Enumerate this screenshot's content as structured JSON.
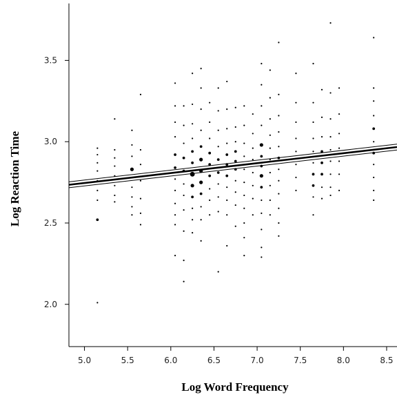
{
  "chart_data": {
    "type": "scatter",
    "title": "",
    "xlabel": "Log Word Frequency",
    "ylabel": "Log Reaction Time",
    "xlim": [
      4.82,
      8.62
    ],
    "ylim": [
      1.74,
      3.85
    ],
    "xticks": [
      5.0,
      5.5,
      6.0,
      6.5,
      7.0,
      7.5,
      8.0,
      8.5
    ],
    "xtick_labels": [
      "5.0",
      "5.5",
      "6.0",
      "6.5",
      "7.0",
      "7.5",
      "8.0",
      "8.5"
    ],
    "yticks": [
      2.0,
      2.5,
      3.0,
      3.5
    ],
    "ytick_labels": [
      "2.0",
      "2.5",
      "3.0",
      "3.5"
    ],
    "grid": false,
    "legend": "none",
    "point_color": "#000000",
    "points": [
      {
        "x": 5.15,
        "y": 2.96,
        "n": 1
      },
      {
        "x": 5.15,
        "y": 2.92,
        "n": 1
      },
      {
        "x": 5.15,
        "y": 2.87,
        "n": 1
      },
      {
        "x": 5.15,
        "y": 2.82,
        "n": 1
      },
      {
        "x": 5.15,
        "y": 2.76,
        "n": 1
      },
      {
        "x": 5.15,
        "y": 2.7,
        "n": 1
      },
      {
        "x": 5.15,
        "y": 2.64,
        "n": 1
      },
      {
        "x": 5.15,
        "y": 2.52,
        "n": 2
      },
      {
        "x": 5.15,
        "y": 2.01,
        "n": 1
      },
      {
        "x": 5.35,
        "y": 3.14,
        "n": 1
      },
      {
        "x": 5.35,
        "y": 2.95,
        "n": 1
      },
      {
        "x": 5.35,
        "y": 2.9,
        "n": 1
      },
      {
        "x": 5.35,
        "y": 2.85,
        "n": 1
      },
      {
        "x": 5.35,
        "y": 2.79,
        "n": 1
      },
      {
        "x": 5.35,
        "y": 2.73,
        "n": 1
      },
      {
        "x": 5.35,
        "y": 2.67,
        "n": 1
      },
      {
        "x": 5.35,
        "y": 2.63,
        "n": 1
      },
      {
        "x": 5.55,
        "y": 3.07,
        "n": 1
      },
      {
        "x": 5.55,
        "y": 2.98,
        "n": 1
      },
      {
        "x": 5.55,
        "y": 2.91,
        "n": 1
      },
      {
        "x": 5.55,
        "y": 2.83,
        "n": 3
      },
      {
        "x": 5.55,
        "y": 2.78,
        "n": 1
      },
      {
        "x": 5.55,
        "y": 2.72,
        "n": 1
      },
      {
        "x": 5.55,
        "y": 2.66,
        "n": 1
      },
      {
        "x": 5.55,
        "y": 2.6,
        "n": 1
      },
      {
        "x": 5.55,
        "y": 2.55,
        "n": 1
      },
      {
        "x": 5.65,
        "y": 3.29,
        "n": 1
      },
      {
        "x": 5.65,
        "y": 2.95,
        "n": 1
      },
      {
        "x": 5.65,
        "y": 2.86,
        "n": 1
      },
      {
        "x": 5.65,
        "y": 2.76,
        "n": 1
      },
      {
        "x": 5.65,
        "y": 2.65,
        "n": 1
      },
      {
        "x": 5.65,
        "y": 2.56,
        "n": 1
      },
      {
        "x": 5.65,
        "y": 2.49,
        "n": 1
      },
      {
        "x": 6.05,
        "y": 3.36,
        "n": 1
      },
      {
        "x": 6.05,
        "y": 3.22,
        "n": 1
      },
      {
        "x": 6.05,
        "y": 3.12,
        "n": 1
      },
      {
        "x": 6.05,
        "y": 3.03,
        "n": 1
      },
      {
        "x": 6.05,
        "y": 2.92,
        "n": 2
      },
      {
        "x": 6.05,
        "y": 2.84,
        "n": 2
      },
      {
        "x": 6.05,
        "y": 2.77,
        "n": 1
      },
      {
        "x": 6.05,
        "y": 2.7,
        "n": 1
      },
      {
        "x": 6.05,
        "y": 2.62,
        "n": 1
      },
      {
        "x": 6.05,
        "y": 2.55,
        "n": 1
      },
      {
        "x": 6.05,
        "y": 2.49,
        "n": 1
      },
      {
        "x": 6.05,
        "y": 2.3,
        "n": 1
      },
      {
        "x": 6.15,
        "y": 3.22,
        "n": 1
      },
      {
        "x": 6.15,
        "y": 3.1,
        "n": 1
      },
      {
        "x": 6.15,
        "y": 2.99,
        "n": 1
      },
      {
        "x": 6.15,
        "y": 2.9,
        "n": 2
      },
      {
        "x": 6.15,
        "y": 2.82,
        "n": 2
      },
      {
        "x": 6.15,
        "y": 2.74,
        "n": 1
      },
      {
        "x": 6.15,
        "y": 2.67,
        "n": 1
      },
      {
        "x": 6.15,
        "y": 2.58,
        "n": 1
      },
      {
        "x": 6.15,
        "y": 2.45,
        "n": 1
      },
      {
        "x": 6.15,
        "y": 2.27,
        "n": 1
      },
      {
        "x": 6.15,
        "y": 2.14,
        "n": 1
      },
      {
        "x": 6.25,
        "y": 3.42,
        "n": 1
      },
      {
        "x": 6.25,
        "y": 3.23,
        "n": 1
      },
      {
        "x": 6.25,
        "y": 3.11,
        "n": 1
      },
      {
        "x": 6.25,
        "y": 3.02,
        "n": 1
      },
      {
        "x": 6.25,
        "y": 2.94,
        "n": 2
      },
      {
        "x": 6.25,
        "y": 2.87,
        "n": 2
      },
      {
        "x": 6.25,
        "y": 2.8,
        "n": 4
      },
      {
        "x": 6.25,
        "y": 2.73,
        "n": 3
      },
      {
        "x": 6.25,
        "y": 2.66,
        "n": 2
      },
      {
        "x": 6.25,
        "y": 2.59,
        "n": 1
      },
      {
        "x": 6.25,
        "y": 2.52,
        "n": 1
      },
      {
        "x": 6.25,
        "y": 2.44,
        "n": 1
      },
      {
        "x": 6.35,
        "y": 3.45,
        "n": 1
      },
      {
        "x": 6.35,
        "y": 3.33,
        "n": 1
      },
      {
        "x": 6.35,
        "y": 3.2,
        "n": 1
      },
      {
        "x": 6.35,
        "y": 3.07,
        "n": 1
      },
      {
        "x": 6.35,
        "y": 2.97,
        "n": 2
      },
      {
        "x": 6.35,
        "y": 2.89,
        "n": 3
      },
      {
        "x": 6.35,
        "y": 2.82,
        "n": 3
      },
      {
        "x": 6.35,
        "y": 2.75,
        "n": 3
      },
      {
        "x": 6.35,
        "y": 2.68,
        "n": 2
      },
      {
        "x": 6.35,
        "y": 2.6,
        "n": 1
      },
      {
        "x": 6.35,
        "y": 2.52,
        "n": 1
      },
      {
        "x": 6.35,
        "y": 2.39,
        "n": 1
      },
      {
        "x": 6.45,
        "y": 3.24,
        "n": 1
      },
      {
        "x": 6.45,
        "y": 3.12,
        "n": 1
      },
      {
        "x": 6.45,
        "y": 3.02,
        "n": 1
      },
      {
        "x": 6.45,
        "y": 2.93,
        "n": 2
      },
      {
        "x": 6.45,
        "y": 2.86,
        "n": 2
      },
      {
        "x": 6.45,
        "y": 2.79,
        "n": 2
      },
      {
        "x": 6.45,
        "y": 2.71,
        "n": 1
      },
      {
        "x": 6.45,
        "y": 2.64,
        "n": 1
      },
      {
        "x": 6.45,
        "y": 2.55,
        "n": 1
      },
      {
        "x": 6.55,
        "y": 3.33,
        "n": 1
      },
      {
        "x": 6.55,
        "y": 3.19,
        "n": 1
      },
      {
        "x": 6.55,
        "y": 3.07,
        "n": 1
      },
      {
        "x": 6.55,
        "y": 2.97,
        "n": 1
      },
      {
        "x": 6.55,
        "y": 2.89,
        "n": 2
      },
      {
        "x": 6.55,
        "y": 2.81,
        "n": 2
      },
      {
        "x": 6.55,
        "y": 2.74,
        "n": 1
      },
      {
        "x": 6.55,
        "y": 2.66,
        "n": 1
      },
      {
        "x": 6.55,
        "y": 2.57,
        "n": 1
      },
      {
        "x": 6.55,
        "y": 2.2,
        "n": 1
      },
      {
        "x": 6.65,
        "y": 3.37,
        "n": 1
      },
      {
        "x": 6.65,
        "y": 3.2,
        "n": 1
      },
      {
        "x": 6.65,
        "y": 3.08,
        "n": 1
      },
      {
        "x": 6.65,
        "y": 2.99,
        "n": 1
      },
      {
        "x": 6.65,
        "y": 2.92,
        "n": 2
      },
      {
        "x": 6.65,
        "y": 2.86,
        "n": 2
      },
      {
        "x": 6.65,
        "y": 2.79,
        "n": 2
      },
      {
        "x": 6.65,
        "y": 2.72,
        "n": 1
      },
      {
        "x": 6.65,
        "y": 2.64,
        "n": 1
      },
      {
        "x": 6.65,
        "y": 2.55,
        "n": 1
      },
      {
        "x": 6.65,
        "y": 2.36,
        "n": 1
      },
      {
        "x": 6.75,
        "y": 3.21,
        "n": 1
      },
      {
        "x": 6.75,
        "y": 3.09,
        "n": 1
      },
      {
        "x": 6.75,
        "y": 3.0,
        "n": 1
      },
      {
        "x": 6.75,
        "y": 2.94,
        "n": 2
      },
      {
        "x": 6.75,
        "y": 2.88,
        "n": 2
      },
      {
        "x": 6.75,
        "y": 2.83,
        "n": 2
      },
      {
        "x": 6.75,
        "y": 2.76,
        "n": 1
      },
      {
        "x": 6.75,
        "y": 2.69,
        "n": 1
      },
      {
        "x": 6.75,
        "y": 2.61,
        "n": 1
      },
      {
        "x": 6.75,
        "y": 2.48,
        "n": 1
      },
      {
        "x": 6.85,
        "y": 3.22,
        "n": 1
      },
      {
        "x": 6.85,
        "y": 3.1,
        "n": 1
      },
      {
        "x": 6.85,
        "y": 2.99,
        "n": 1
      },
      {
        "x": 6.85,
        "y": 2.91,
        "n": 1
      },
      {
        "x": 6.85,
        "y": 2.83,
        "n": 1
      },
      {
        "x": 6.85,
        "y": 2.75,
        "n": 1
      },
      {
        "x": 6.85,
        "y": 2.67,
        "n": 1
      },
      {
        "x": 6.85,
        "y": 2.59,
        "n": 1
      },
      {
        "x": 6.85,
        "y": 2.5,
        "n": 1
      },
      {
        "x": 6.85,
        "y": 2.41,
        "n": 1
      },
      {
        "x": 6.85,
        "y": 2.3,
        "n": 1
      },
      {
        "x": 6.95,
        "y": 3.17,
        "n": 1
      },
      {
        "x": 6.95,
        "y": 3.05,
        "n": 1
      },
      {
        "x": 6.95,
        "y": 2.96,
        "n": 1
      },
      {
        "x": 6.95,
        "y": 2.89,
        "n": 1
      },
      {
        "x": 6.95,
        "y": 2.81,
        "n": 1
      },
      {
        "x": 6.95,
        "y": 2.73,
        "n": 1
      },
      {
        "x": 6.95,
        "y": 2.65,
        "n": 1
      },
      {
        "x": 6.95,
        "y": 2.55,
        "n": 1
      },
      {
        "x": 7.05,
        "y": 3.48,
        "n": 1
      },
      {
        "x": 7.05,
        "y": 3.35,
        "n": 1
      },
      {
        "x": 7.05,
        "y": 3.22,
        "n": 1
      },
      {
        "x": 7.05,
        "y": 3.1,
        "n": 1
      },
      {
        "x": 7.05,
        "y": 2.98,
        "n": 3
      },
      {
        "x": 7.05,
        "y": 2.91,
        "n": 2
      },
      {
        "x": 7.05,
        "y": 2.85,
        "n": 2
      },
      {
        "x": 7.05,
        "y": 2.79,
        "n": 3
      },
      {
        "x": 7.05,
        "y": 2.72,
        "n": 2
      },
      {
        "x": 7.05,
        "y": 2.64,
        "n": 1
      },
      {
        "x": 7.05,
        "y": 2.56,
        "n": 1
      },
      {
        "x": 7.05,
        "y": 2.46,
        "n": 1
      },
      {
        "x": 7.05,
        "y": 2.35,
        "n": 1
      },
      {
        "x": 7.05,
        "y": 2.29,
        "n": 1
      },
      {
        "x": 7.15,
        "y": 3.44,
        "n": 1
      },
      {
        "x": 7.15,
        "y": 3.27,
        "n": 1
      },
      {
        "x": 7.15,
        "y": 3.14,
        "n": 1
      },
      {
        "x": 7.15,
        "y": 3.04,
        "n": 1
      },
      {
        "x": 7.15,
        "y": 2.96,
        "n": 1
      },
      {
        "x": 7.15,
        "y": 2.89,
        "n": 1
      },
      {
        "x": 7.15,
        "y": 2.81,
        "n": 1
      },
      {
        "x": 7.15,
        "y": 2.73,
        "n": 1
      },
      {
        "x": 7.15,
        "y": 2.64,
        "n": 1
      },
      {
        "x": 7.15,
        "y": 2.55,
        "n": 1
      },
      {
        "x": 7.25,
        "y": 3.61,
        "n": 1
      },
      {
        "x": 7.25,
        "y": 3.29,
        "n": 1
      },
      {
        "x": 7.25,
        "y": 3.16,
        "n": 1
      },
      {
        "x": 7.25,
        "y": 3.06,
        "n": 1
      },
      {
        "x": 7.25,
        "y": 2.97,
        "n": 1
      },
      {
        "x": 7.25,
        "y": 2.9,
        "n": 2
      },
      {
        "x": 7.25,
        "y": 2.83,
        "n": 1
      },
      {
        "x": 7.25,
        "y": 2.76,
        "n": 1
      },
      {
        "x": 7.25,
        "y": 2.68,
        "n": 1
      },
      {
        "x": 7.25,
        "y": 2.59,
        "n": 1
      },
      {
        "x": 7.25,
        "y": 2.5,
        "n": 1
      },
      {
        "x": 7.25,
        "y": 2.42,
        "n": 1
      },
      {
        "x": 7.45,
        "y": 3.42,
        "n": 1
      },
      {
        "x": 7.45,
        "y": 3.24,
        "n": 1
      },
      {
        "x": 7.45,
        "y": 3.12,
        "n": 1
      },
      {
        "x": 7.45,
        "y": 3.02,
        "n": 1
      },
      {
        "x": 7.45,
        "y": 2.94,
        "n": 1
      },
      {
        "x": 7.45,
        "y": 2.86,
        "n": 1
      },
      {
        "x": 7.45,
        "y": 2.78,
        "n": 1
      },
      {
        "x": 7.45,
        "y": 2.7,
        "n": 1
      },
      {
        "x": 7.65,
        "y": 3.48,
        "n": 1
      },
      {
        "x": 7.65,
        "y": 3.24,
        "n": 1
      },
      {
        "x": 7.65,
        "y": 3.12,
        "n": 1
      },
      {
        "x": 7.65,
        "y": 3.02,
        "n": 1
      },
      {
        "x": 7.65,
        "y": 2.94,
        "n": 1
      },
      {
        "x": 7.65,
        "y": 2.87,
        "n": 1
      },
      {
        "x": 7.65,
        "y": 2.8,
        "n": 2
      },
      {
        "x": 7.65,
        "y": 2.73,
        "n": 2
      },
      {
        "x": 7.65,
        "y": 2.66,
        "n": 1
      },
      {
        "x": 7.65,
        "y": 2.55,
        "n": 1
      },
      {
        "x": 7.75,
        "y": 3.32,
        "n": 1
      },
      {
        "x": 7.75,
        "y": 3.15,
        "n": 1
      },
      {
        "x": 7.75,
        "y": 3.03,
        "n": 1
      },
      {
        "x": 7.75,
        "y": 2.94,
        "n": 2
      },
      {
        "x": 7.75,
        "y": 2.87,
        "n": 2
      },
      {
        "x": 7.75,
        "y": 2.8,
        "n": 2
      },
      {
        "x": 7.75,
        "y": 2.72,
        "n": 1
      },
      {
        "x": 7.75,
        "y": 2.65,
        "n": 1
      },
      {
        "x": 7.85,
        "y": 3.73,
        "n": 1
      },
      {
        "x": 7.85,
        "y": 3.3,
        "n": 1
      },
      {
        "x": 7.85,
        "y": 3.14,
        "n": 1
      },
      {
        "x": 7.85,
        "y": 3.03,
        "n": 1
      },
      {
        "x": 7.85,
        "y": 2.95,
        "n": 1
      },
      {
        "x": 7.85,
        "y": 2.88,
        "n": 1
      },
      {
        "x": 7.85,
        "y": 2.8,
        "n": 1
      },
      {
        "x": 7.85,
        "y": 2.72,
        "n": 1
      },
      {
        "x": 7.85,
        "y": 2.67,
        "n": 1
      },
      {
        "x": 7.95,
        "y": 3.33,
        "n": 1
      },
      {
        "x": 7.95,
        "y": 3.17,
        "n": 1
      },
      {
        "x": 7.95,
        "y": 3.05,
        "n": 1
      },
      {
        "x": 7.95,
        "y": 2.96,
        "n": 1
      },
      {
        "x": 7.95,
        "y": 2.88,
        "n": 1
      },
      {
        "x": 7.95,
        "y": 2.8,
        "n": 1
      },
      {
        "x": 7.95,
        "y": 2.7,
        "n": 1
      },
      {
        "x": 8.35,
        "y": 3.64,
        "n": 1
      },
      {
        "x": 8.35,
        "y": 3.33,
        "n": 1
      },
      {
        "x": 8.35,
        "y": 3.25,
        "n": 1
      },
      {
        "x": 8.35,
        "y": 3.16,
        "n": 1
      },
      {
        "x": 8.35,
        "y": 3.08,
        "n": 2
      },
      {
        "x": 8.35,
        "y": 3.0,
        "n": 1
      },
      {
        "x": 8.35,
        "y": 2.93,
        "n": 2
      },
      {
        "x": 8.35,
        "y": 2.86,
        "n": 1
      },
      {
        "x": 8.35,
        "y": 2.78,
        "n": 1
      },
      {
        "x": 8.35,
        "y": 2.7,
        "n": 1
      },
      {
        "x": 8.35,
        "y": 2.64,
        "n": 1
      }
    ],
    "regression_line": {
      "x": [
        4.82,
        8.62
      ],
      "y": [
        2.735,
        2.967
      ]
    },
    "confidence_band_halfwidth": 0.018
  }
}
